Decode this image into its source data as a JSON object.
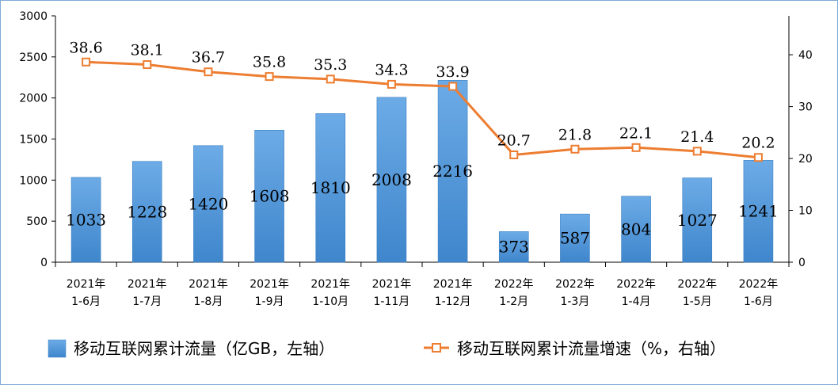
{
  "chart_data": {
    "type": "bar+line",
    "categories": [
      [
        "2021年",
        "1-6月"
      ],
      [
        "2021年",
        "1-7月"
      ],
      [
        "2021年",
        "1-8月"
      ],
      [
        "2021年",
        "1-9月"
      ],
      [
        "2021年",
        "1-10月"
      ],
      [
        "2021年",
        "1-11月"
      ],
      [
        "2021年",
        "1-12月"
      ],
      [
        "2022年",
        "1-2月"
      ],
      [
        "2022年",
        "1-3月"
      ],
      [
        "2022年",
        "1-4月"
      ],
      [
        "2022年",
        "1-5月"
      ],
      [
        "2022年",
        "1-6月"
      ]
    ],
    "series": [
      {
        "name": "移动互联网累计流量（亿GB，左轴）",
        "type": "bar",
        "axis": "left",
        "values": [
          1033,
          1228,
          1420,
          1608,
          1810,
          2008,
          2216,
          373,
          587,
          804,
          1027,
          1241
        ],
        "labels": [
          "1033",
          "1228",
          "1420",
          "1608",
          "1810",
          "2008",
          "2216",
          "373",
          "587",
          "804",
          "1027",
          "1241"
        ]
      },
      {
        "name": "移动互联网累计流量增速（%，右轴）",
        "type": "line",
        "axis": "right",
        "values": [
          38.6,
          38.1,
          36.7,
          35.8,
          35.3,
          34.3,
          33.9,
          20.7,
          21.8,
          22.1,
          21.4,
          20.2
        ],
        "labels": [
          "38.6",
          "38.1",
          "36.7",
          "35.8",
          "35.3",
          "34.3",
          "33.9",
          "20.7",
          "21.8",
          "22.1",
          "21.4",
          "20.2"
        ]
      }
    ],
    "y_left": {
      "ylim": [
        0,
        3000
      ],
      "ticks": [
        "0",
        "500",
        "1000",
        "1500",
        "2000",
        "2500",
        "3000"
      ]
    },
    "y_right": {
      "ylim": [
        0,
        47.5
      ],
      "ticks": [
        "0",
        "10",
        "20",
        "30",
        "40"
      ]
    },
    "grid": false,
    "legend_position": "bottom",
    "colors": {
      "bar": "#5b9bd5",
      "line": "#ed7d31",
      "frame": "#7fa7d6"
    }
  }
}
